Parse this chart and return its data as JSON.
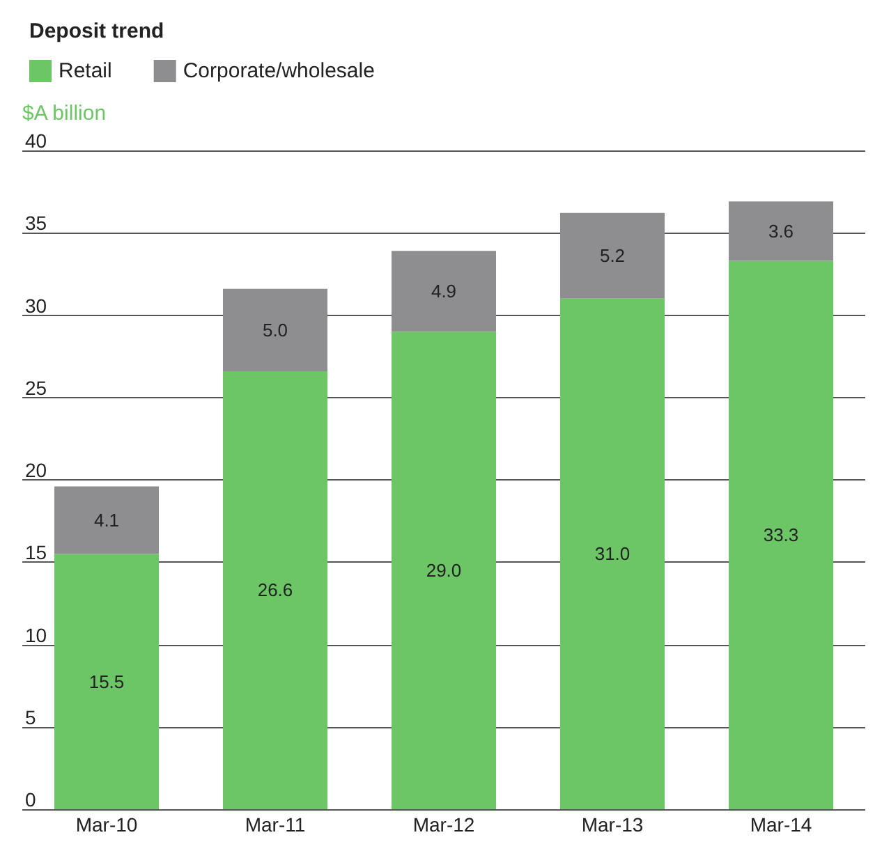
{
  "chart_data": {
    "type": "bar",
    "title": "Deposit trend",
    "ylabel": "$A billion",
    "categories": [
      "Mar-10",
      "Mar-11",
      "Mar-12",
      "Mar-13",
      "Mar-14"
    ],
    "series": [
      {
        "name": "Retail",
        "color": "#6cc666",
        "values": [
          15.5,
          26.6,
          29.0,
          31.0,
          33.3
        ],
        "value_labels": [
          "15.5",
          "26.6",
          "29.0",
          "31.0",
          "33.3"
        ]
      },
      {
        "name": "Corporate/wholesale",
        "color": "#8e8e90",
        "values": [
          4.1,
          5.0,
          4.9,
          5.2,
          3.6
        ],
        "value_labels": [
          "4.1",
          "5.0",
          "4.9",
          "5.2",
          "3.6"
        ]
      }
    ],
    "stacked": true,
    "ylim": [
      0,
      40
    ],
    "yticks": [
      0,
      5,
      10,
      15,
      20,
      25,
      30,
      35,
      40
    ],
    "grid": "y",
    "legend": "top left"
  }
}
